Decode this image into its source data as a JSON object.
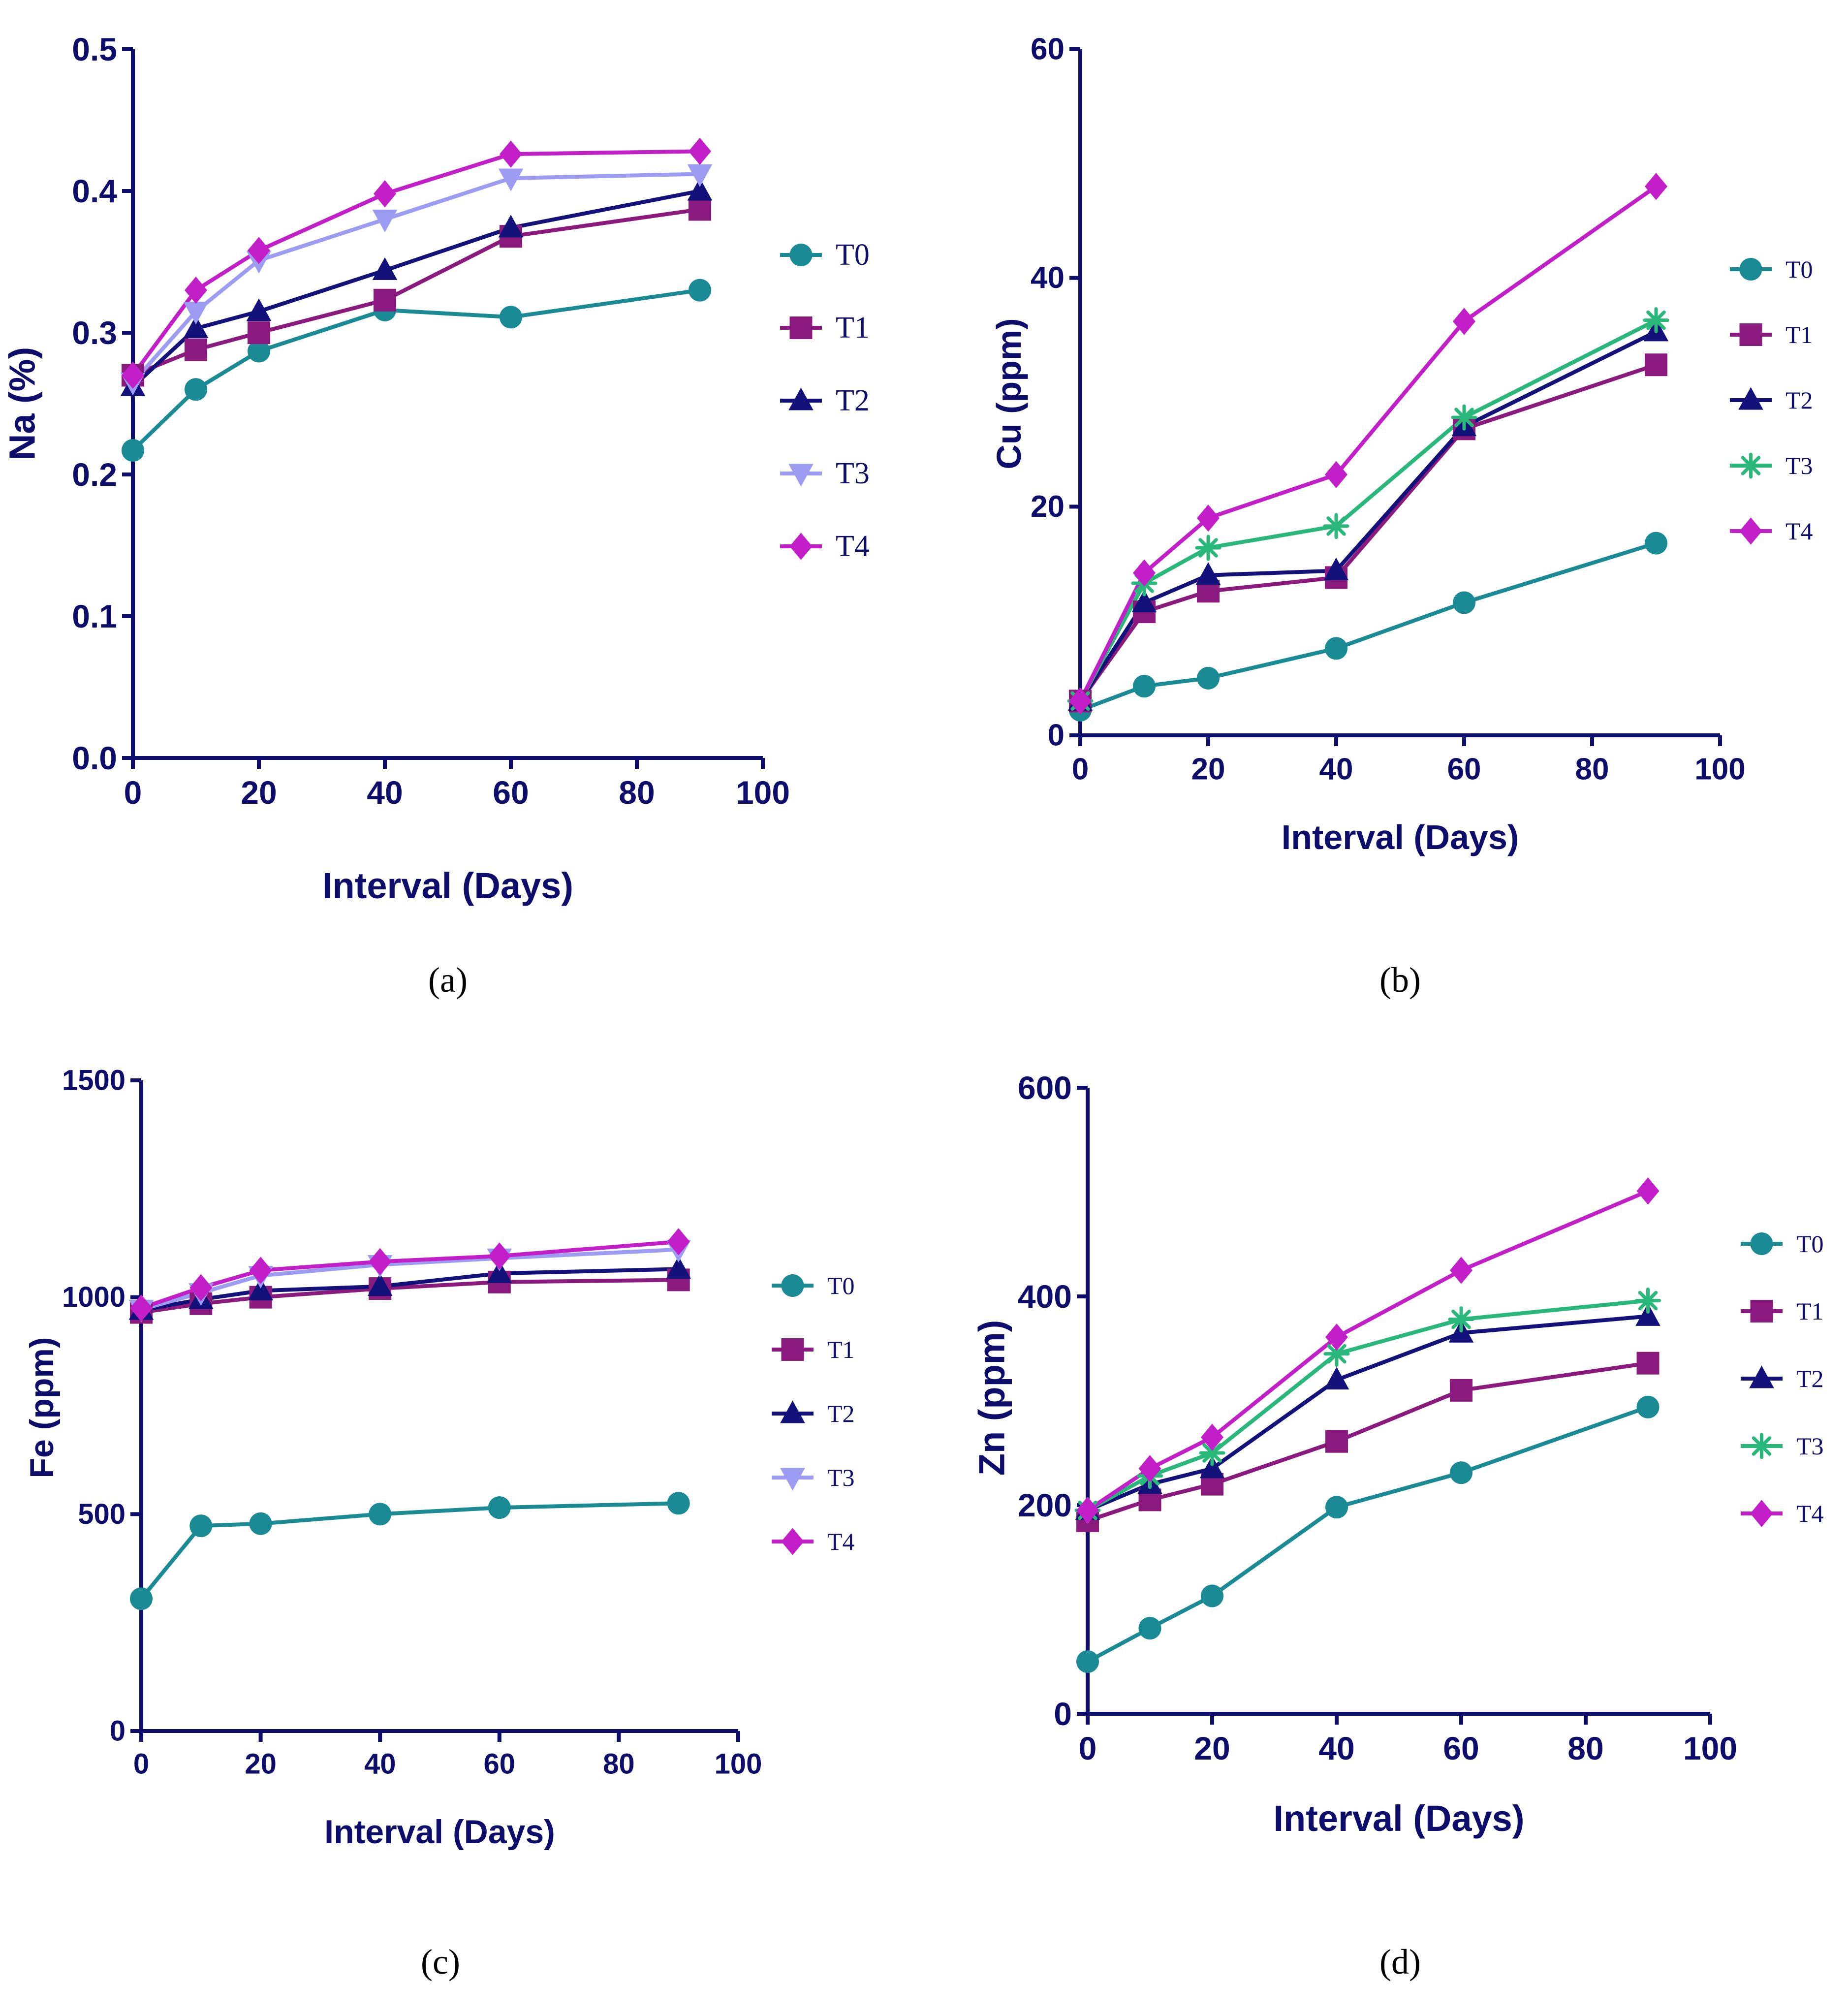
{
  "colors": {
    "T0": "#1a8a94",
    "T1": "#8b1a7e",
    "T2": "#12127a",
    "T3_light": "#9b9cf2",
    "T3_green": "#2ab87a",
    "T4": "#c21fc9",
    "axis": "#0d0d6b"
  },
  "chart_data": [
    {
      "id": "a",
      "type": "line",
      "panel_label": "(a)",
      "xlabel": "Interval (Days)",
      "ylabel": "Na (%)",
      "xlim": [
        0,
        100
      ],
      "ylim": [
        0,
        0.5
      ],
      "xticks": [
        0,
        20,
        40,
        60,
        80,
        100
      ],
      "xtick_labels": [
        "0",
        "20",
        "40",
        "60",
        "80",
        "100"
      ],
      "yticks": [
        0,
        0.1,
        0.2,
        0.3,
        0.4,
        0.5
      ],
      "ytick_labels": [
        "0.0",
        "0.1",
        "0.2",
        "0.3",
        "0.4",
        "0.5"
      ],
      "x": [
        0,
        10,
        20,
        40,
        60,
        90
      ],
      "legend_position": "right",
      "series": [
        {
          "name": "T0",
          "marker": "circle",
          "color": "#1a8a94",
          "values": [
            0.217,
            0.26,
            0.287,
            0.316,
            0.311,
            0.33
          ]
        },
        {
          "name": "T1",
          "marker": "square",
          "color": "#8b1a7e",
          "values": [
            0.27,
            0.288,
            0.3,
            0.323,
            0.368,
            0.387
          ]
        },
        {
          "name": "T2",
          "marker": "triangle-up",
          "color": "#12127a",
          "values": [
            0.262,
            0.303,
            0.315,
            0.344,
            0.374,
            0.4
          ]
        },
        {
          "name": "T3",
          "marker": "triangle-down",
          "color": "#9b9cf2",
          "values": [
            0.265,
            0.315,
            0.351,
            0.38,
            0.409,
            0.412
          ]
        },
        {
          "name": "T4",
          "marker": "diamond",
          "color": "#c21fc9",
          "values": [
            0.27,
            0.33,
            0.358,
            0.398,
            0.426,
            0.428
          ]
        }
      ]
    },
    {
      "id": "b",
      "type": "line",
      "panel_label": "(b)",
      "xlabel": "Interval (Days)",
      "ylabel": "Cu (ppm)",
      "xlim": [
        0,
        100
      ],
      "ylim": [
        0,
        60
      ],
      "xticks": [
        0,
        20,
        40,
        60,
        80,
        100
      ],
      "xtick_labels": [
        "0",
        "20",
        "40",
        "60",
        "80",
        "100"
      ],
      "yticks": [
        0,
        20,
        40,
        60
      ],
      "ytick_labels": [
        "0",
        "20",
        "40",
        "60"
      ],
      "x": [
        0,
        10,
        20,
        40,
        60,
        90
      ],
      "legend_position": "right",
      "series": [
        {
          "name": "T0",
          "marker": "circle",
          "color": "#1a8a94",
          "values": [
            2.2,
            4.3,
            5.0,
            7.6,
            11.6,
            16.8
          ]
        },
        {
          "name": "T1",
          "marker": "square",
          "color": "#8b1a7e",
          "values": [
            3.0,
            10.8,
            12.6,
            13.8,
            26.8,
            32.4
          ]
        },
        {
          "name": "T2",
          "marker": "triangle-up",
          "color": "#12127a",
          "values": [
            3.0,
            11.6,
            14.0,
            14.4,
            27.0,
            35.3
          ]
        },
        {
          "name": "T3",
          "marker": "asterisk",
          "color": "#2ab87a",
          "values": [
            3.0,
            13.3,
            16.4,
            18.3,
            27.8,
            36.3
          ]
        },
        {
          "name": "T4",
          "marker": "diamond",
          "color": "#c21fc9",
          "values": [
            3.0,
            14.2,
            19.0,
            22.8,
            36.2,
            48.0
          ]
        }
      ]
    },
    {
      "id": "c",
      "type": "line",
      "panel_label": "(c)",
      "xlabel": "Interval (Days)",
      "ylabel": "Fe (ppm)",
      "xlim": [
        0,
        100
      ],
      "ylim": [
        0,
        1500
      ],
      "xticks": [
        0,
        20,
        40,
        60,
        80,
        100
      ],
      "xtick_labels": [
        "0",
        "20",
        "40",
        "60",
        "80",
        "100"
      ],
      "yticks": [
        0,
        500,
        1000,
        1500
      ],
      "ytick_labels": [
        "0",
        "500",
        "1000",
        "1500"
      ],
      "x": [
        0,
        10,
        20,
        40,
        60,
        90
      ],
      "legend_position": "right",
      "series": [
        {
          "name": "T0",
          "marker": "circle",
          "color": "#1a8a94",
          "values": [
            305,
            473,
            478,
            500,
            515,
            525
          ]
        },
        {
          "name": "T1",
          "marker": "square",
          "color": "#8b1a7e",
          "values": [
            965,
            985,
            1000,
            1020,
            1035,
            1040
          ]
        },
        {
          "name": "T2",
          "marker": "triangle-up",
          "color": "#12127a",
          "values": [
            970,
            995,
            1015,
            1025,
            1055,
            1065
          ]
        },
        {
          "name": "T3",
          "marker": "triangle-down",
          "color": "#9b9cf2",
          "values": [
            972,
            1010,
            1050,
            1075,
            1090,
            1110
          ]
        },
        {
          "name": "T4",
          "marker": "diamond",
          "color": "#c21fc9",
          "values": [
            975,
            1022,
            1062,
            1082,
            1095,
            1128
          ]
        }
      ]
    },
    {
      "id": "d",
      "type": "line",
      "panel_label": "(d)",
      "xlabel": "Interval (Days)",
      "ylabel": "Zn (ppm)",
      "xlim": [
        0,
        100
      ],
      "ylim": [
        0,
        600
      ],
      "xticks": [
        0,
        20,
        40,
        60,
        80,
        100
      ],
      "xtick_labels": [
        "0",
        "20",
        "40",
        "60",
        "80",
        "100"
      ],
      "yticks": [
        0,
        200,
        400,
        600
      ],
      "ytick_labels": [
        "0",
        "200",
        "400",
        "600"
      ],
      "x": [
        0,
        10,
        20,
        40,
        60,
        90
      ],
      "legend_position": "right",
      "series": [
        {
          "name": "T0",
          "marker": "circle",
          "color": "#1a8a94",
          "values": [
            50,
            82,
            113,
            198,
            231,
            294
          ]
        },
        {
          "name": "T1",
          "marker": "square",
          "color": "#8b1a7e",
          "values": [
            185,
            205,
            220,
            261,
            310,
            336
          ]
        },
        {
          "name": "T2",
          "marker": "triangle-up",
          "color": "#12127a",
          "values": [
            195,
            220,
            235,
            320,
            365,
            381
          ]
        },
        {
          "name": "T3",
          "marker": "asterisk",
          "color": "#2ab87a",
          "values": [
            195,
            228,
            250,
            345,
            378,
            396
          ]
        },
        {
          "name": "T4",
          "marker": "diamond",
          "color": "#c21fc9",
          "values": [
            195,
            235,
            265,
            361,
            425,
            501
          ]
        }
      ]
    }
  ]
}
